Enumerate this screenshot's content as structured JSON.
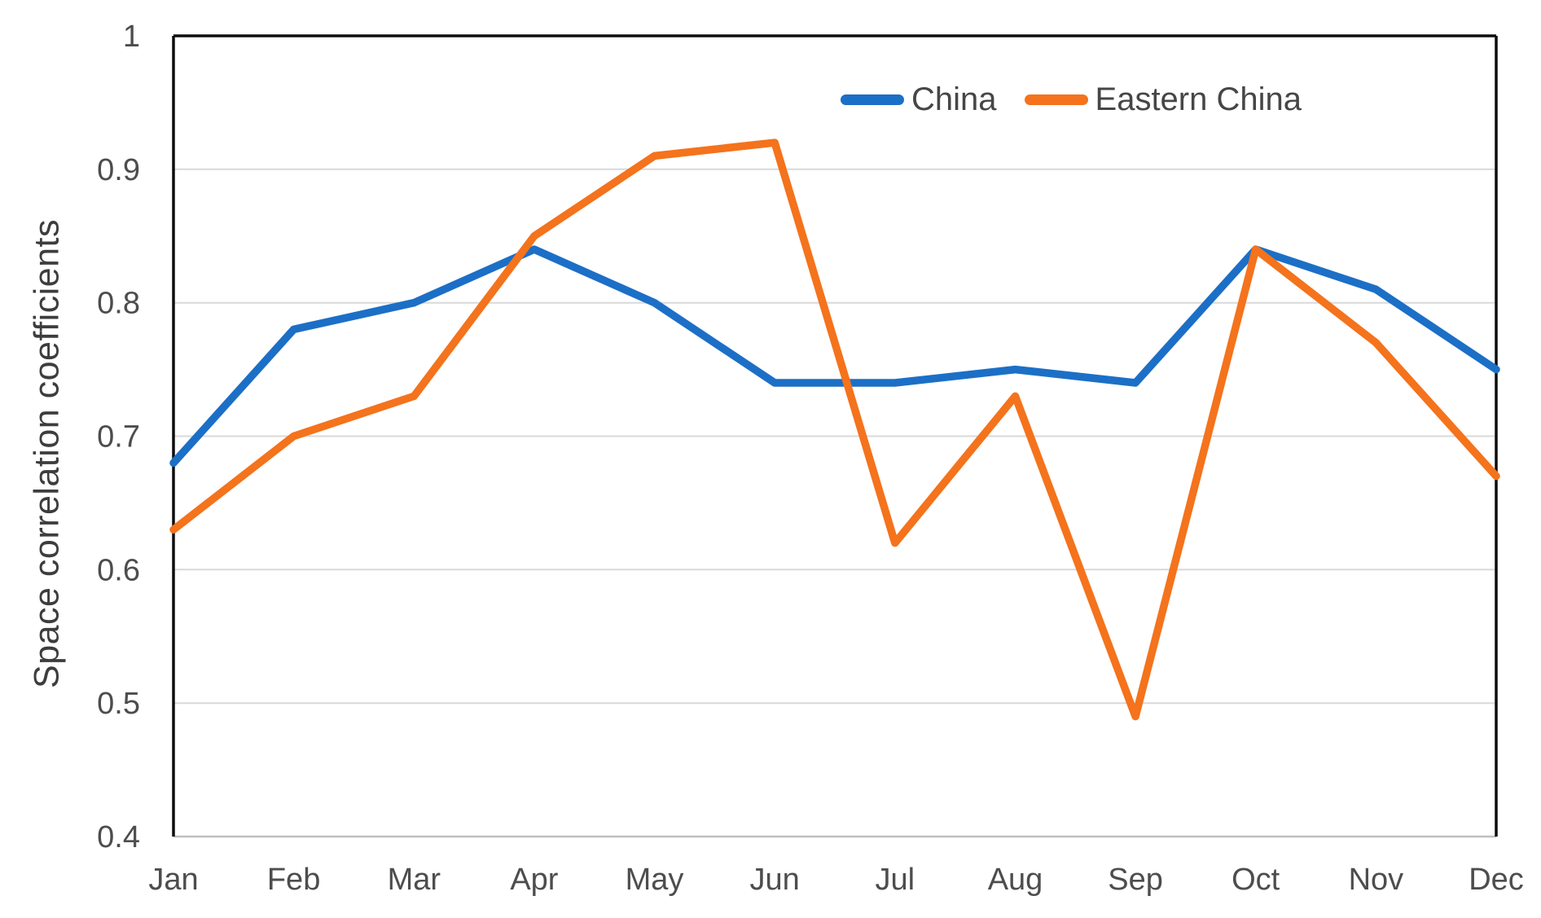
{
  "chart_data": {
    "type": "line",
    "title": "",
    "xlabel": "",
    "ylabel": "Space correlation coefficients",
    "categories": [
      "Jan",
      "Feb",
      "Mar",
      "Apr",
      "May",
      "Jun",
      "Jul",
      "Aug",
      "Sep",
      "Oct",
      "Nov",
      "Dec"
    ],
    "series": [
      {
        "name": "China",
        "color": "#1c6fc6",
        "values": [
          0.68,
          0.78,
          0.8,
          0.84,
          0.8,
          0.74,
          0.74,
          0.75,
          0.74,
          0.84,
          0.81,
          0.75
        ]
      },
      {
        "name": "Eastern China",
        "color": "#f4731c",
        "values": [
          0.63,
          0.7,
          0.73,
          0.85,
          0.91,
          0.92,
          0.62,
          0.73,
          0.49,
          0.84,
          0.77,
          0.67
        ]
      }
    ],
    "ylim": [
      0.4,
      1.0
    ],
    "yticks": [
      1.0,
      0.9,
      0.8,
      0.7,
      0.6,
      0.5,
      0.4
    ],
    "ytick_labels": [
      "1",
      "0.9",
      "0.8",
      "0.7",
      "0.6",
      "0.5",
      "0.4"
    ],
    "grid": "horizontal",
    "legend_position": "top-right",
    "colors": {
      "axis_border": "#0d0d0d",
      "gridline": "#d9d9d9",
      "bottom_line": "#bfbfbf",
      "tick_label": "#4d4d4d",
      "axis_title": "#3d3d3d"
    }
  }
}
